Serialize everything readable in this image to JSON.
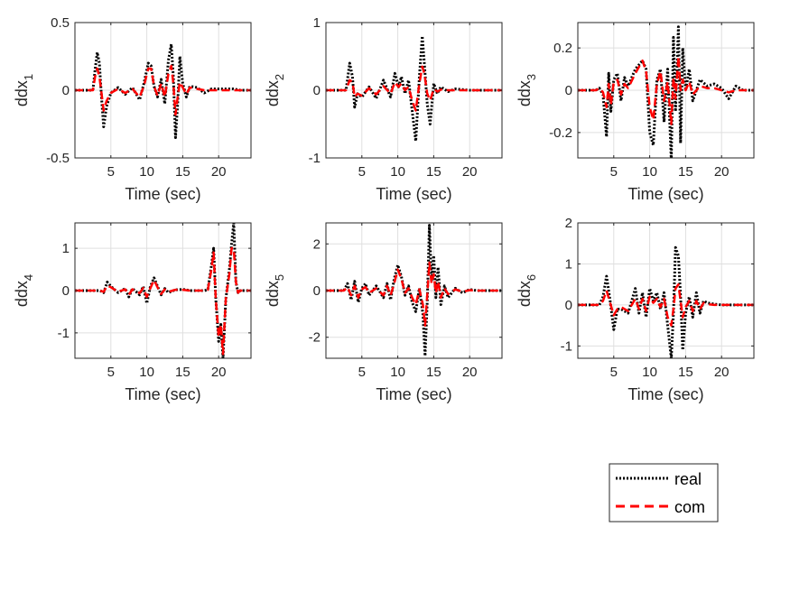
{
  "colors": {
    "real": "#000000",
    "com": "#ff0000",
    "grid": "#dfdfdf",
    "axis": "#262626"
  },
  "legend": {
    "placement": "bottom-right",
    "entries": [
      "real",
      "com"
    ]
  },
  "chart_data": [
    {
      "type": "line",
      "ylabel_base": "ddx",
      "ylabel_sub": "1",
      "xlabel": "Time (sec)",
      "xlim": [
        0,
        24.5
      ],
      "ylim": [
        -0.5,
        0.5
      ],
      "xticks": [
        5,
        10,
        15,
        20
      ],
      "yticks": [
        -0.5,
        0,
        0.5
      ],
      "ytick_labels": [
        "-0.5",
        "0",
        "0.5"
      ],
      "grid": true,
      "series": [
        {
          "name": "real",
          "style": "dotted",
          "x": [
            0,
            2.5,
            2.8,
            3.1,
            3.4,
            3.7,
            4.0,
            4.4,
            5.0,
            6.0,
            7.0,
            8.0,
            9.0,
            9.6,
            10.2,
            10.6,
            11.0,
            11.5,
            12.0,
            12.5,
            13.0,
            13.4,
            13.7,
            14.0,
            14.3,
            14.6,
            15.0,
            15.5,
            16.0,
            17.0,
            18.0,
            19.0,
            20.0,
            21.0,
            22.0,
            23.0,
            24.5
          ],
          "y": [
            0,
            0,
            0.15,
            0.28,
            0.2,
            -0.05,
            -0.27,
            -0.12,
            -0.02,
            0.02,
            -0.03,
            0.02,
            -0.07,
            0.05,
            0.2,
            0.18,
            0.03,
            -0.05,
            0.08,
            -0.1,
            0.22,
            0.34,
            0.1,
            -0.35,
            -0.1,
            0.25,
            0.05,
            -0.05,
            0.03,
            0.02,
            -0.02,
            0.01,
            0.01,
            0.01,
            0.01,
            0,
            0
          ]
        },
        {
          "name": "com",
          "style": "dashed",
          "x": [
            0,
            2.5,
            2.8,
            3.1,
            3.4,
            3.7,
            4.0,
            4.4,
            5.0,
            6.0,
            7.0,
            8.0,
            9.0,
            9.6,
            10.2,
            10.6,
            11.0,
            11.5,
            12.0,
            12.5,
            13.0,
            13.4,
            13.7,
            14.0,
            14.3,
            14.6,
            15.0,
            15.5,
            16.0,
            17.0,
            18.0,
            19.0,
            20.0,
            21.0,
            22.0,
            23.0,
            24.5
          ],
          "y": [
            0,
            0,
            0.1,
            0.16,
            0.1,
            -0.02,
            -0.15,
            -0.08,
            -0.02,
            0.01,
            -0.02,
            0.01,
            -0.05,
            0.03,
            0.16,
            0.16,
            0.03,
            -0.04,
            0.05,
            -0.05,
            0.12,
            0.18,
            0.05,
            -0.18,
            -0.05,
            0.06,
            0.02,
            -0.03,
            0.02,
            0.01,
            0,
            0,
            0,
            0,
            0,
            0,
            0
          ]
        }
      ]
    },
    {
      "type": "line",
      "ylabel_base": "ddx",
      "ylabel_sub": "2",
      "xlabel": "Time (sec)",
      "xlim": [
        0,
        24.5
      ],
      "ylim": [
        -1,
        1
      ],
      "xticks": [
        5,
        10,
        15,
        20
      ],
      "yticks": [
        -1,
        0,
        1
      ],
      "ytick_labels": [
        "-1",
        "0",
        "1"
      ],
      "grid": true,
      "series": [
        {
          "name": "real",
          "style": "dotted",
          "x": [
            0,
            2.8,
            3.3,
            3.7,
            4.0,
            4.4,
            5.0,
            6.0,
            7.0,
            8.0,
            9.0,
            9.6,
            10.1,
            10.5,
            11.0,
            11.5,
            12.0,
            12.5,
            13.0,
            13.4,
            13.7,
            14.1,
            14.5,
            15.0,
            15.5,
            16.0,
            17.0,
            18.0,
            19.0,
            20.0,
            24.5
          ],
          "y": [
            0,
            0,
            0.4,
            0.2,
            -0.25,
            -0.05,
            -0.1,
            0.05,
            -0.12,
            0.15,
            -0.1,
            0.25,
            0.05,
            0.2,
            -0.05,
            0.15,
            -0.3,
            -0.75,
            0.2,
            0.8,
            0.4,
            -0.2,
            -0.5,
            0.1,
            -0.05,
            0.05,
            -0.02,
            0.02,
            0.01,
            0,
            0
          ]
        },
        {
          "name": "com",
          "style": "dashed",
          "x": [
            0,
            2.8,
            3.3,
            3.7,
            4.0,
            4.4,
            5.0,
            6.0,
            7.0,
            8.0,
            9.0,
            9.6,
            10.1,
            10.5,
            11.0,
            11.5,
            12.0,
            12.5,
            13.0,
            13.4,
            13.7,
            14.1,
            14.5,
            15.0,
            15.5,
            16.0,
            17.0,
            18.0,
            19.0,
            20.0,
            24.5
          ],
          "y": [
            0,
            0,
            0.15,
            0.12,
            -0.1,
            -0.05,
            -0.08,
            0.03,
            -0.06,
            0.06,
            -0.05,
            0.12,
            0.05,
            0.1,
            0,
            0.05,
            -0.15,
            -0.3,
            0.1,
            0.35,
            0.25,
            -0.05,
            -0.15,
            0.02,
            -0.02,
            0.01,
            0,
            0,
            0,
            0,
            0
          ]
        }
      ]
    },
    {
      "type": "line",
      "ylabel_base": "ddx",
      "ylabel_sub": "3",
      "xlabel": "Time (sec)",
      "xlim": [
        0,
        24.5
      ],
      "ylim": [
        -0.32,
        0.32
      ],
      "xticks": [
        5,
        10,
        15,
        20
      ],
      "yticks": [
        -0.2,
        0,
        0.2
      ],
      "ytick_labels": [
        "-0.2",
        "0",
        "0.2"
      ],
      "grid": true,
      "series": [
        {
          "name": "real",
          "style": "dotted",
          "x": [
            0,
            2.5,
            3.0,
            3.5,
            4.0,
            4.3,
            4.6,
            5.0,
            5.5,
            6.0,
            6.5,
            7.0,
            8.0,
            9.0,
            9.5,
            10.0,
            10.5,
            11.0,
            11.5,
            12.0,
            12.5,
            13.0,
            13.3,
            13.6,
            14.0,
            14.3,
            14.6,
            15.0,
            15.5,
            16.0,
            17.0,
            18.0,
            19.0,
            20.0,
            21.0,
            22.0,
            23.0,
            24.5
          ],
          "y": [
            0,
            0,
            0.01,
            -0.02,
            -0.22,
            0.08,
            -0.1,
            0.05,
            0.08,
            -0.05,
            0.06,
            0.02,
            0.1,
            0.14,
            0.1,
            -0.2,
            -0.26,
            0.05,
            0.1,
            -0.15,
            0.1,
            -0.33,
            0.25,
            -0.1,
            0.3,
            -0.25,
            0.2,
            0.0,
            0.1,
            -0.05,
            0.05,
            0.02,
            0.03,
            0.01,
            -0.04,
            0.02,
            0,
            0
          ]
        },
        {
          "name": "com",
          "style": "dashed",
          "x": [
            0,
            2.5,
            3.0,
            3.5,
            4.0,
            4.3,
            4.6,
            5.0,
            5.5,
            6.0,
            6.5,
            7.0,
            8.0,
            9.0,
            9.5,
            10.0,
            10.5,
            11.0,
            11.5,
            12.0,
            12.5,
            13.0,
            13.3,
            13.6,
            14.0,
            14.3,
            14.6,
            15.0,
            15.5,
            16.0,
            17.0,
            18.0,
            19.0,
            20.0,
            21.0,
            22.0,
            23.0,
            24.5
          ],
          "y": [
            0,
            0,
            0.01,
            -0.01,
            -0.08,
            0.03,
            -0.07,
            0.04,
            0.05,
            -0.02,
            0.03,
            0.01,
            0.08,
            0.14,
            0.09,
            -0.08,
            -0.14,
            0.03,
            0.09,
            -0.05,
            0.04,
            -0.16,
            0.06,
            -0.04,
            0.16,
            0.0,
            0.05,
            0.0,
            0.04,
            -0.02,
            0.02,
            0.01,
            0.01,
            0,
            -0.01,
            0,
            0,
            0
          ]
        }
      ]
    },
    {
      "type": "line",
      "ylabel_base": "ddx",
      "ylabel_sub": "4",
      "xlabel": "Time (sec)",
      "xlim": [
        0,
        24.5
      ],
      "ylim": [
        -1.6,
        1.6
      ],
      "xticks": [
        5,
        10,
        15,
        20
      ],
      "yticks": [
        -1,
        0,
        1
      ],
      "ytick_labels": [
        "-1",
        "0",
        "1"
      ],
      "grid": true,
      "series": [
        {
          "name": "real",
          "style": "dotted",
          "x": [
            0,
            3.5,
            4.0,
            4.5,
            5.0,
            6.0,
            7.0,
            7.5,
            8.0,
            9.0,
            9.5,
            10.0,
            10.5,
            11.0,
            11.5,
            12.0,
            12.5,
            13.0,
            14.0,
            15.0,
            16.0,
            17.0,
            18.0,
            18.5,
            19.0,
            19.3,
            19.6,
            20.0,
            20.3,
            20.6,
            21.0,
            21.5,
            21.8,
            22.1,
            22.4,
            22.7,
            23.0,
            24.5
          ],
          "y": [
            0,
            0,
            -0.05,
            0.2,
            0.1,
            -0.05,
            0.05,
            -0.15,
            0.05,
            -0.1,
            0.1,
            -0.3,
            0.1,
            0.3,
            0.1,
            -0.1,
            0.05,
            -0.05,
            0.02,
            0.03,
            0,
            0,
            0,
            0.02,
            0.6,
            1.0,
            -0.2,
            -1.2,
            -0.8,
            -1.6,
            -0.2,
            0.5,
            1.1,
            1.6,
            0.2,
            -0.05,
            0,
            0
          ]
        },
        {
          "name": "com",
          "style": "dashed",
          "x": [
            0,
            3.5,
            4.0,
            4.5,
            5.0,
            6.0,
            7.0,
            7.5,
            8.0,
            9.0,
            9.5,
            10.0,
            10.5,
            11.0,
            11.5,
            12.0,
            12.5,
            13.0,
            14.0,
            15.0,
            16.0,
            17.0,
            18.0,
            18.5,
            19.0,
            19.3,
            19.6,
            20.0,
            20.3,
            20.6,
            21.0,
            21.5,
            21.8,
            22.1,
            22.4,
            22.7,
            23.0,
            24.5
          ],
          "y": [
            0,
            0,
            -0.03,
            0.12,
            0.08,
            -0.03,
            0.03,
            -0.1,
            0.03,
            -0.06,
            0.06,
            -0.15,
            0.06,
            0.25,
            0.08,
            -0.08,
            0.03,
            -0.03,
            0.02,
            0.02,
            0,
            0,
            0,
            0.02,
            0.5,
            0.9,
            -0.2,
            -1.1,
            -0.8,
            -1.5,
            -0.2,
            0.4,
            1.0,
            1.0,
            0.2,
            -0.05,
            0,
            0
          ]
        }
      ]
    },
    {
      "type": "line",
      "ylabel_base": "ddx",
      "ylabel_sub": "5",
      "xlabel": "Time (sec)",
      "xlim": [
        0,
        24.5
      ],
      "ylim": [
        -2.9,
        2.9
      ],
      "xticks": [
        5,
        10,
        15,
        20
      ],
      "yticks": [
        -2,
        0,
        2
      ],
      "ytick_labels": [
        "-2",
        "0",
        "2"
      ],
      "grid": true,
      "series": [
        {
          "name": "real",
          "style": "dotted",
          "x": [
            0,
            2.5,
            3.0,
            3.5,
            4.0,
            4.5,
            5.0,
            5.5,
            6.0,
            7.0,
            8.0,
            8.5,
            9.0,
            9.5,
            10.0,
            10.5,
            11.0,
            11.5,
            12.0,
            12.5,
            13.0,
            13.5,
            13.8,
            14.1,
            14.4,
            14.7,
            15.0,
            15.3,
            15.6,
            16.0,
            16.5,
            17.0,
            18.0,
            19.0,
            20.0,
            21.0,
            22.0,
            24.5
          ],
          "y": [
            0,
            0,
            0.3,
            -0.4,
            0.4,
            -0.5,
            0.1,
            0.3,
            -0.2,
            0.2,
            -0.3,
            0.3,
            -0.4,
            0.5,
            1.1,
            0.6,
            -0.2,
            0.2,
            -0.5,
            -0.9,
            0.1,
            -1.0,
            -2.8,
            -0.5,
            2.8,
            0.4,
            1.5,
            -0.3,
            1.0,
            -0.6,
            0.2,
            -0.3,
            0.1,
            -0.1,
            0.05,
            0,
            0,
            0
          ]
        },
        {
          "name": "com",
          "style": "dashed",
          "x": [
            0,
            2.5,
            3.0,
            3.5,
            4.0,
            4.5,
            5.0,
            5.5,
            6.0,
            7.0,
            8.0,
            8.5,
            9.0,
            9.5,
            10.0,
            10.5,
            11.0,
            11.5,
            12.0,
            12.5,
            13.0,
            13.5,
            13.8,
            14.1,
            14.4,
            14.7,
            15.0,
            15.3,
            15.6,
            16.0,
            16.5,
            17.0,
            18.0,
            19.0,
            20.0,
            21.0,
            22.0,
            24.5
          ],
          "y": [
            0,
            0,
            0.15,
            -0.2,
            0.2,
            -0.3,
            0.05,
            0.15,
            -0.1,
            0.1,
            -0.2,
            0.2,
            -0.2,
            0.3,
            0.9,
            0.5,
            -0.1,
            0.1,
            -0.3,
            -0.6,
            0.05,
            -0.6,
            -1.5,
            -0.2,
            1.2,
            0.3,
            0.7,
            -0.1,
            0.4,
            -0.3,
            0.1,
            -0.15,
            0.05,
            -0.05,
            0.02,
            0,
            0,
            0
          ]
        }
      ]
    },
    {
      "type": "line",
      "ylabel_base": "ddx",
      "ylabel_sub": "6",
      "xlabel": "Time (sec)",
      "xlim": [
        0,
        24.5
      ],
      "ylim": [
        -1.3,
        2.0
      ],
      "xticks": [
        5,
        10,
        15,
        20
      ],
      "yticks": [
        -1,
        0,
        1,
        2
      ],
      "ytick_labels": [
        "-1",
        "0",
        "1",
        "2"
      ],
      "grid": true,
      "series": [
        {
          "name": "real",
          "style": "dotted",
          "x": [
            0,
            3.0,
            3.5,
            4.0,
            4.5,
            5.0,
            5.5,
            6.0,
            7.0,
            8.0,
            8.5,
            9.0,
            9.5,
            10.0,
            10.5,
            11.0,
            11.5,
            12.0,
            12.5,
            13.0,
            13.3,
            13.6,
            14.0,
            14.3,
            14.6,
            15.0,
            15.5,
            16.0,
            16.5,
            17.0,
            17.5,
            18.0,
            19.0,
            20.0,
            24.5
          ],
          "y": [
            0,
            0,
            0.2,
            0.7,
            0.1,
            -0.6,
            -0.1,
            -0.1,
            -0.2,
            0.4,
            -0.2,
            0.3,
            -0.3,
            0.4,
            0.1,
            0.3,
            -0.1,
            0.3,
            -0.5,
            -1.3,
            -0.2,
            1.4,
            1.2,
            0.2,
            -1.1,
            -0.2,
            0.2,
            -0.3,
            0.3,
            -0.2,
            0.1,
            0.05,
            0.02,
            0,
            0
          ]
        },
        {
          "name": "com",
          "style": "dashed",
          "x": [
            0,
            3.0,
            3.5,
            4.0,
            4.5,
            5.0,
            5.5,
            6.0,
            7.0,
            8.0,
            8.5,
            9.0,
            9.5,
            10.0,
            10.5,
            11.0,
            11.5,
            12.0,
            12.5,
            13.0,
            13.3,
            13.6,
            14.0,
            14.3,
            14.6,
            15.0,
            15.5,
            16.0,
            16.5,
            17.0,
            17.5,
            18.0,
            19.0,
            20.0,
            24.5
          ],
          "y": [
            0,
            0,
            0.1,
            0.35,
            0.05,
            -0.25,
            -0.1,
            -0.05,
            -0.15,
            0.15,
            -0.1,
            0.15,
            -0.15,
            0.2,
            0.05,
            0.15,
            -0.05,
            0.15,
            -0.3,
            -0.5,
            -0.1,
            0.4,
            0.5,
            0.1,
            -0.3,
            -0.05,
            0.1,
            -0.15,
            0.1,
            -0.1,
            0.05,
            0.02,
            0,
            0,
            0
          ]
        }
      ]
    }
  ]
}
